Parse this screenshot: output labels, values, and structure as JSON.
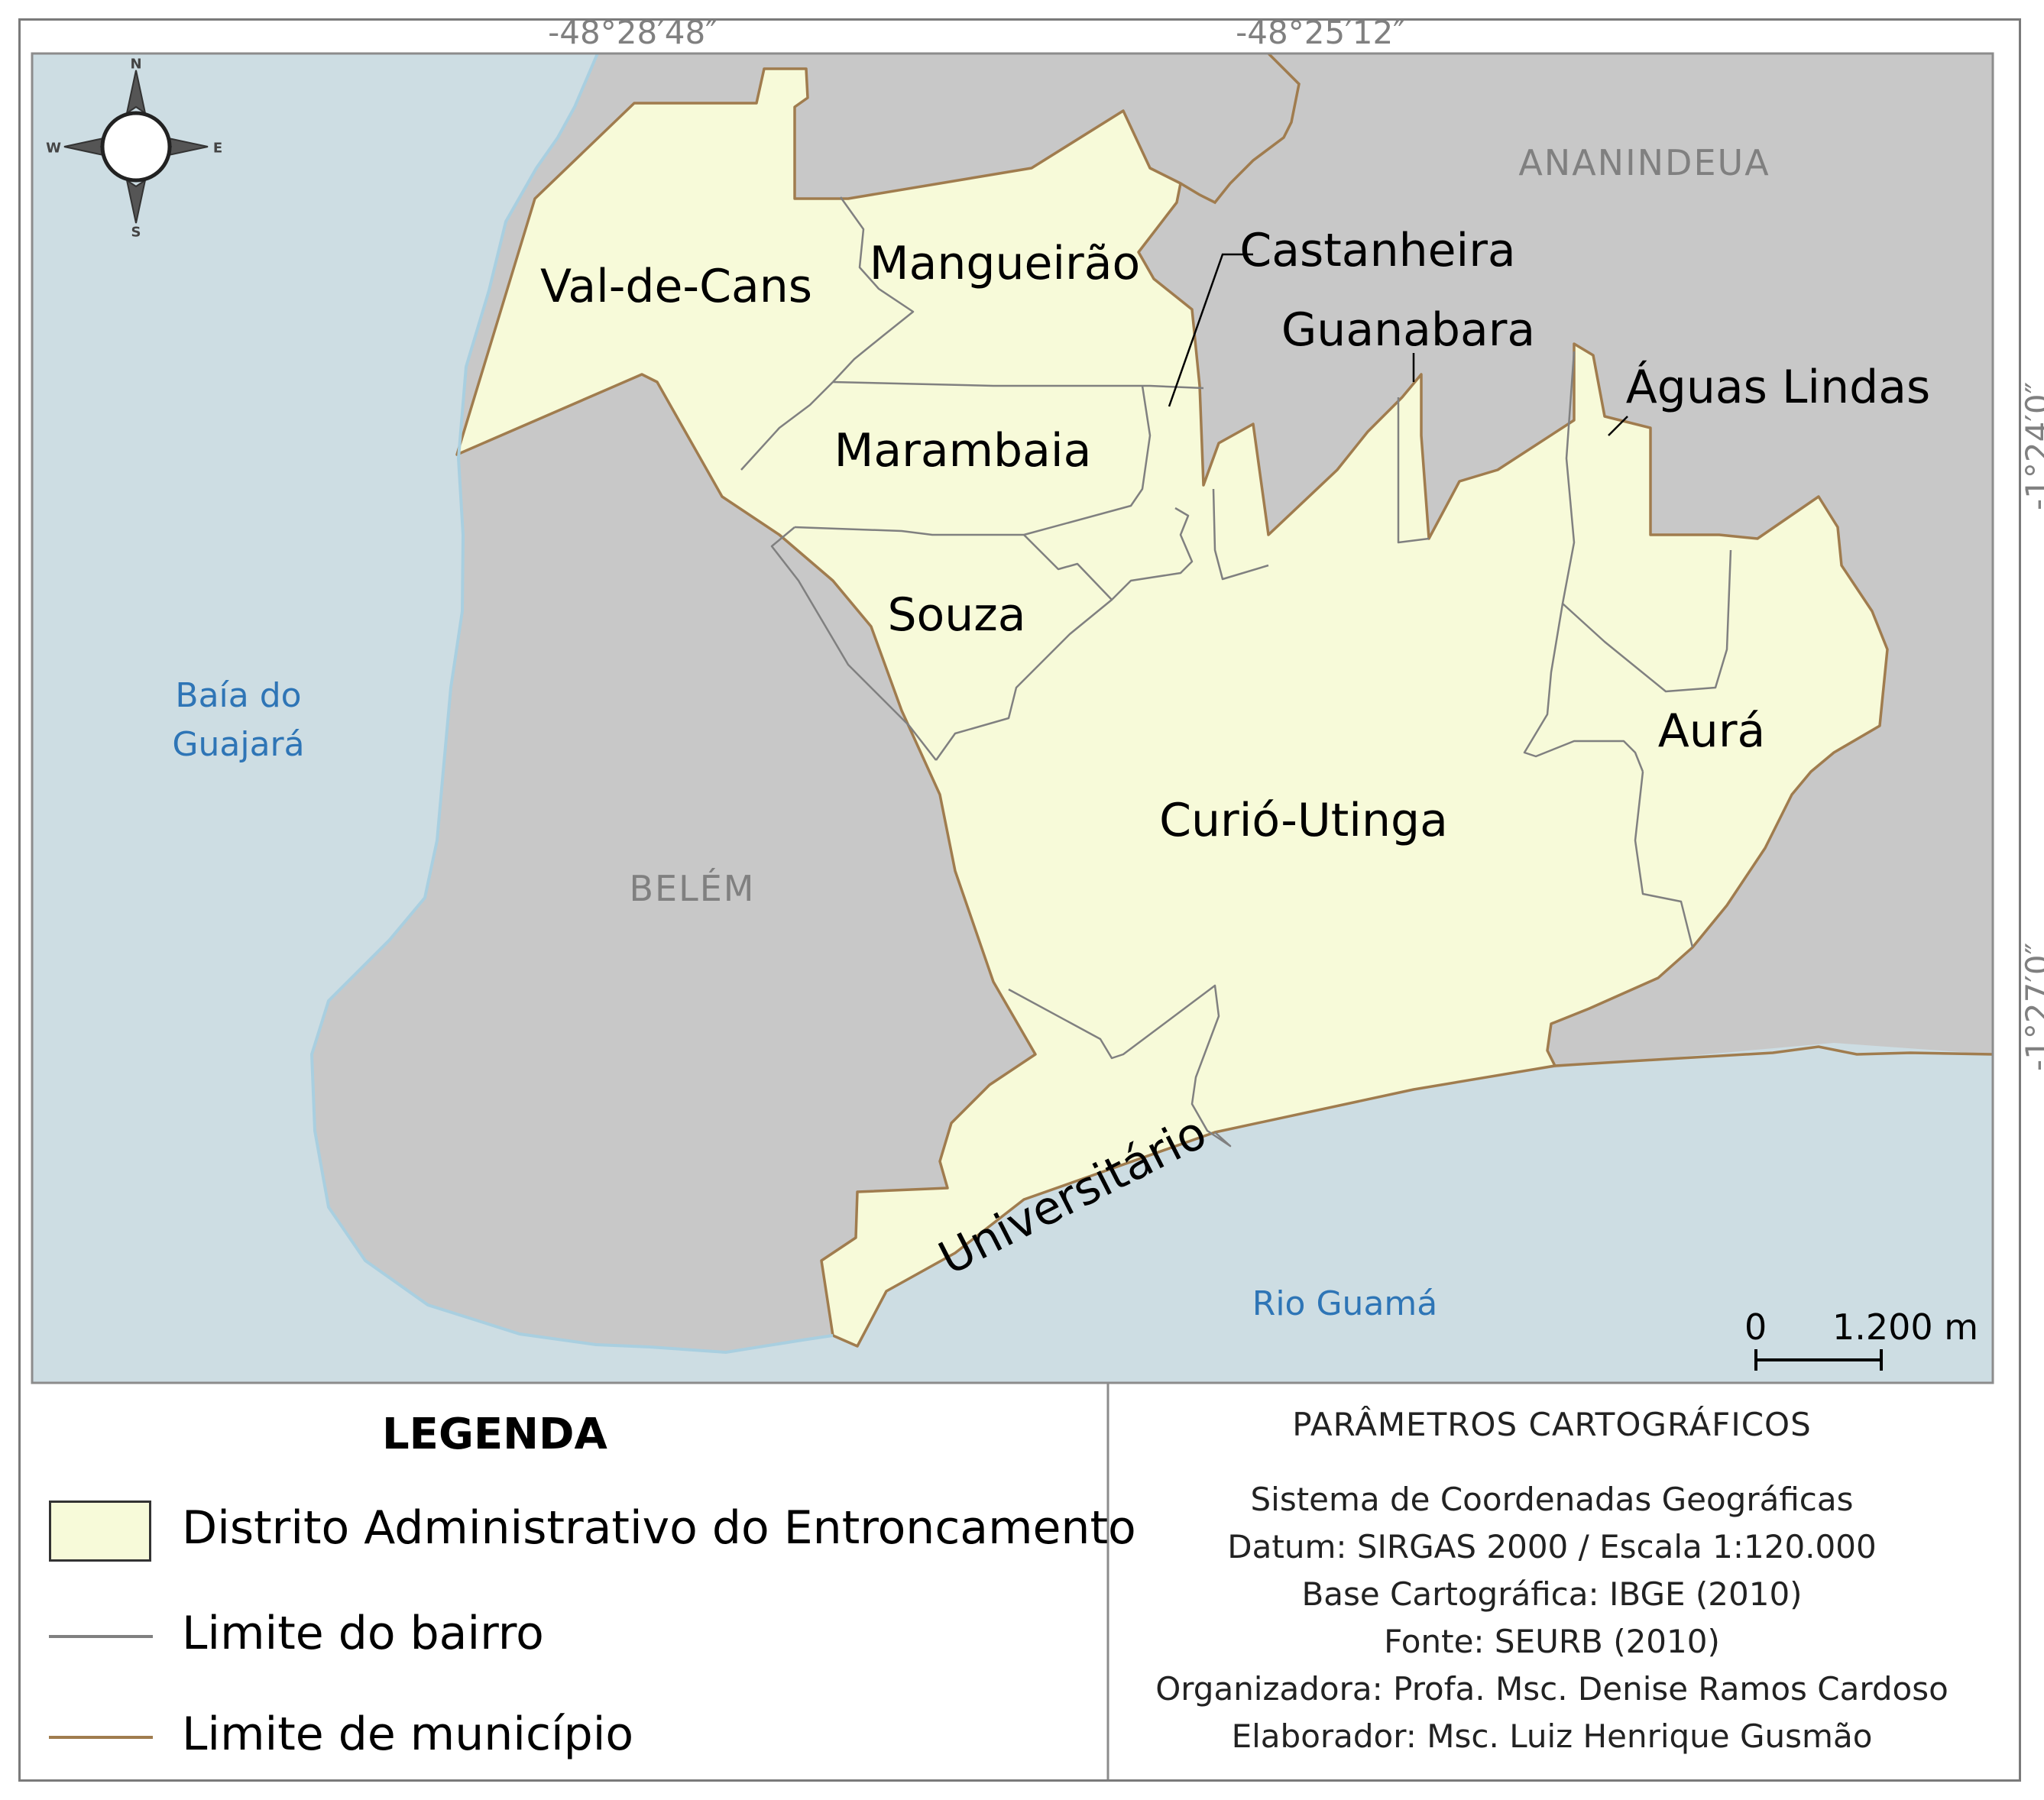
{
  "map": {
    "coordinates": {
      "top": [
        "-48°28′48″",
        "-48°25′12″"
      ],
      "right": [
        "-1°24′0″",
        "-1°27′0″"
      ]
    },
    "districts": [
      "Val-de-Cans",
      "Mangueirão",
      "Castanheira",
      "Guanabara",
      "Águas Lindas",
      "Marambaia",
      "Souza",
      "Curió-Utinga",
      "Aurá",
      "Universitário"
    ],
    "water_bodies": {
      "bay_line1": "Baía do",
      "bay_line2": "Guajará",
      "river": "Rio Guamá"
    },
    "municipalities": [
      "ANANINDEUA",
      "BELÉM"
    ],
    "compass": {
      "n": "N",
      "s": "S",
      "e": "E",
      "w": "W"
    },
    "scale": {
      "start": "0",
      "end": "1.200 m"
    },
    "colors": {
      "water": "#cddde3",
      "other_land": "#c8c8c8",
      "district_fill": "#f7fad9",
      "bairro_boundary": "#808080",
      "municipio_boundary": "#a07c4e",
      "water_label": "#2e75b6"
    }
  },
  "legend": {
    "title": "LEGENDA",
    "items": [
      {
        "label": "Distrito Administrativo do Entroncamento",
        "symbol": "district-fill-swatch"
      },
      {
        "label": "Limite do bairro",
        "symbol": "gray-line"
      },
      {
        "label": "Limite de município",
        "symbol": "brown-line"
      }
    ]
  },
  "parameters": {
    "title": "PARÂMETROS CARTOGRÁFICOS",
    "lines": [
      "Sistema de Coordenadas Geográficas",
      "Datum: SIRGAS 2000 / Escala 1:120.000",
      "Base Cartográfica: IBGE (2010)",
      "Fonte: SEURB (2010)",
      "Organizadora: Profa. Msc. Denise Ramos Cardoso",
      "Elaborador: Msc. Luiz Henrique Gusmão"
    ]
  }
}
